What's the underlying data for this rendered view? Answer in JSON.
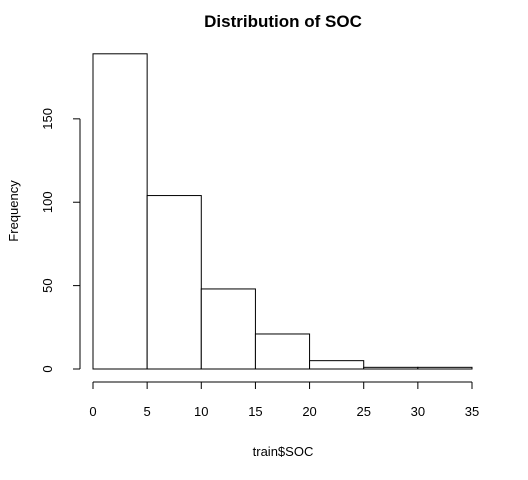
{
  "chart_data": {
    "type": "bar",
    "title": "Distribution of SOC",
    "xlabel": "train$SOC",
    "ylabel": "Frequency",
    "bins": [
      {
        "start": 0,
        "end": 5,
        "count": 189
      },
      {
        "start": 5,
        "end": 10,
        "count": 104
      },
      {
        "start": 10,
        "end": 15,
        "count": 48
      },
      {
        "start": 15,
        "end": 20,
        "count": 21
      },
      {
        "start": 20,
        "end": 25,
        "count": 5
      },
      {
        "start": 25,
        "end": 30,
        "count": 1
      },
      {
        "start": 30,
        "end": 35,
        "count": 1
      }
    ],
    "x_ticks": [
      "0",
      "5",
      "10",
      "15",
      "20",
      "25",
      "30",
      "35"
    ],
    "y_ticks": [
      "0",
      "50",
      "100",
      "150"
    ],
    "xlim": [
      0,
      35
    ],
    "ylim": [
      0,
      189
    ],
    "grid": false,
    "legend": "none"
  }
}
